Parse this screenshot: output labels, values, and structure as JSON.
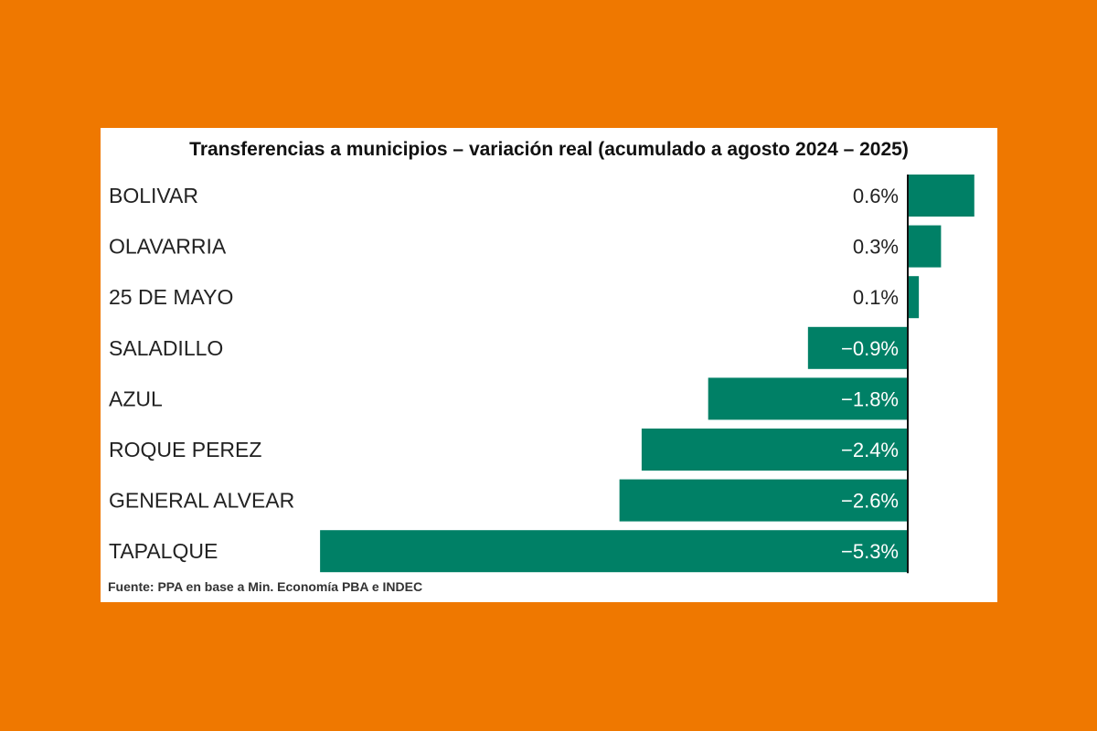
{
  "chart_data": {
    "type": "bar",
    "orientation": "horizontal",
    "title": "Transferencias a municipios – variación real (acumulado a agosto 2024 – 2025)",
    "categories": [
      "BOLIVAR",
      "OLAVARRIA",
      "25 DE MAYO",
      "SALADILLO",
      "AZUL",
      "ROQUE PEREZ",
      "GENERAL ALVEAR",
      "TAPALQUE"
    ],
    "values": [
      0.6,
      0.3,
      0.1,
      -0.9,
      -1.8,
      -2.4,
      -2.6,
      -5.3
    ],
    "value_labels": [
      "0.6%",
      "0.3%",
      "0.1%",
      "−0.9%",
      "−1.8%",
      "−2.4%",
      "−2.6%",
      "−5.3%"
    ],
    "xlim": [
      -5.3,
      0.6
    ],
    "bar_color": "#008066",
    "source": "Fuente: PPA en base a Min. Economía PBA e INDEC"
  },
  "colors": {
    "background": "#ef7800",
    "card": "#ffffff",
    "bar": "#008066",
    "zero_line": "#111111"
  }
}
